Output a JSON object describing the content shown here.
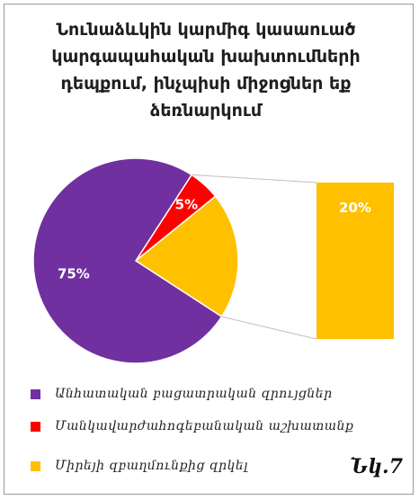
{
  "figure_label": "Նկ.7",
  "colors": {
    "purple": "#7030A0",
    "red": "#FF0000",
    "yellow": "#FFC000",
    "connector": "#bfbfbf"
  },
  "chart_data": {
    "type": "pie",
    "subtype": "bar-of-pie",
    "title": "Նունաձևկին կարմիգ կասաուած կարգապահական խախտումների դեպքում, ինչպիսի միջոցներ եք ձեռնարկում",
    "grid": false,
    "legend_position": "bottom",
    "slices": [
      {
        "name": "Անհատական բացատրական զրույցներ",
        "value": 75,
        "label": "75%",
        "color": "#7030A0"
      },
      {
        "name": "Մանկավարժահոգեբանական աշխատանք",
        "value": 5,
        "label": "5%",
        "color": "#FF0000"
      },
      {
        "name": "Միրեյի զբաղմունքից զրկել",
        "value": 20,
        "label": "20%",
        "color": "#FFC000"
      }
    ]
  }
}
